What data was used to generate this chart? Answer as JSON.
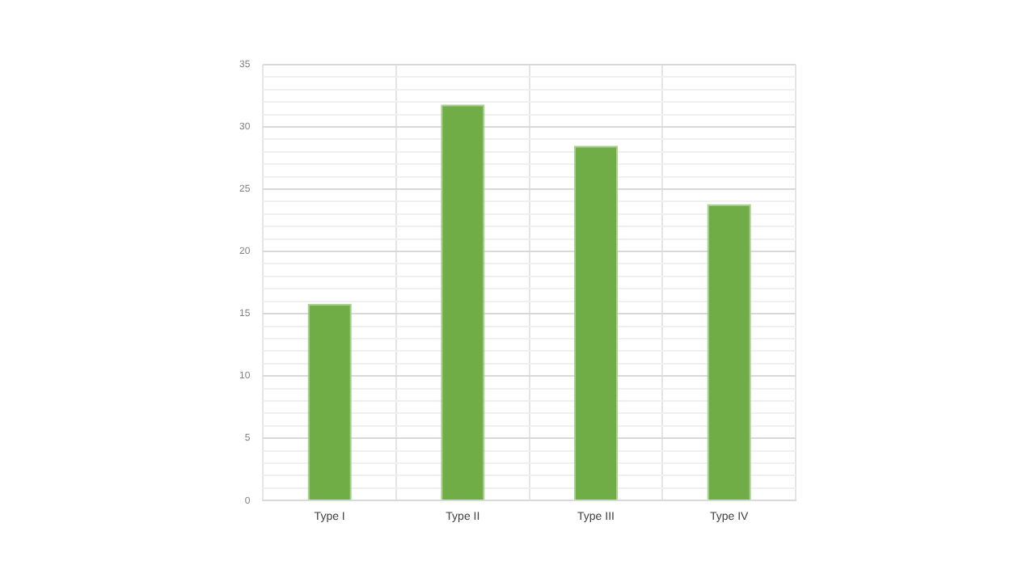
{
  "chart_data": {
    "type": "bar",
    "categories": [
      "Type I",
      "Type II",
      "Type III",
      "Type IV"
    ],
    "values": [
      15.8,
      31.8,
      28.5,
      23.8
    ],
    "color": "#70ad47",
    "ylim": [
      0,
      35
    ],
    "yticks": [
      0,
      {
        "value": 1,
        "label": null
      },
      {
        "value": 2,
        "label": null
      },
      {
        "value": 3,
        "label": null
      },
      {
        "value": 4,
        "label": null
      },
      5,
      {
        "value": 6,
        "label": null
      },
      {
        "value": 7,
        "label": null
      },
      {
        "value": 8,
        "label": null
      },
      {
        "value": 9,
        "label": null
      },
      10,
      {
        "value": 11,
        "label": null
      },
      {
        "value": 12,
        "label": null
      },
      {
        "value": 13,
        "label": null
      },
      {
        "value": 14,
        "label": null
      },
      15,
      {
        "value": 16,
        "label": null
      },
      {
        "value": 17,
        "label": null
      },
      {
        "value": 18,
        "label": null
      },
      {
        "value": 19,
        "label": null
      },
      20,
      {
        "value": 21,
        "label": null
      },
      {
        "value": 22,
        "label": null
      },
      {
        "value": 23,
        "label": null
      },
      {
        "value": 24,
        "label": null
      },
      25,
      {
        "value": 26,
        "label": null
      },
      {
        "value": 27,
        "label": null
      },
      {
        "value": 28,
        "label": null
      },
      {
        "value": 29,
        "label": null
      },
      30,
      {
        "value": 31,
        "label": null
      },
      {
        "value": 32,
        "label": null
      },
      {
        "value": 33,
        "label": null
      },
      {
        "value": 34,
        "label": null
      },
      35
    ],
    "grid": true,
    "legend": false
  }
}
